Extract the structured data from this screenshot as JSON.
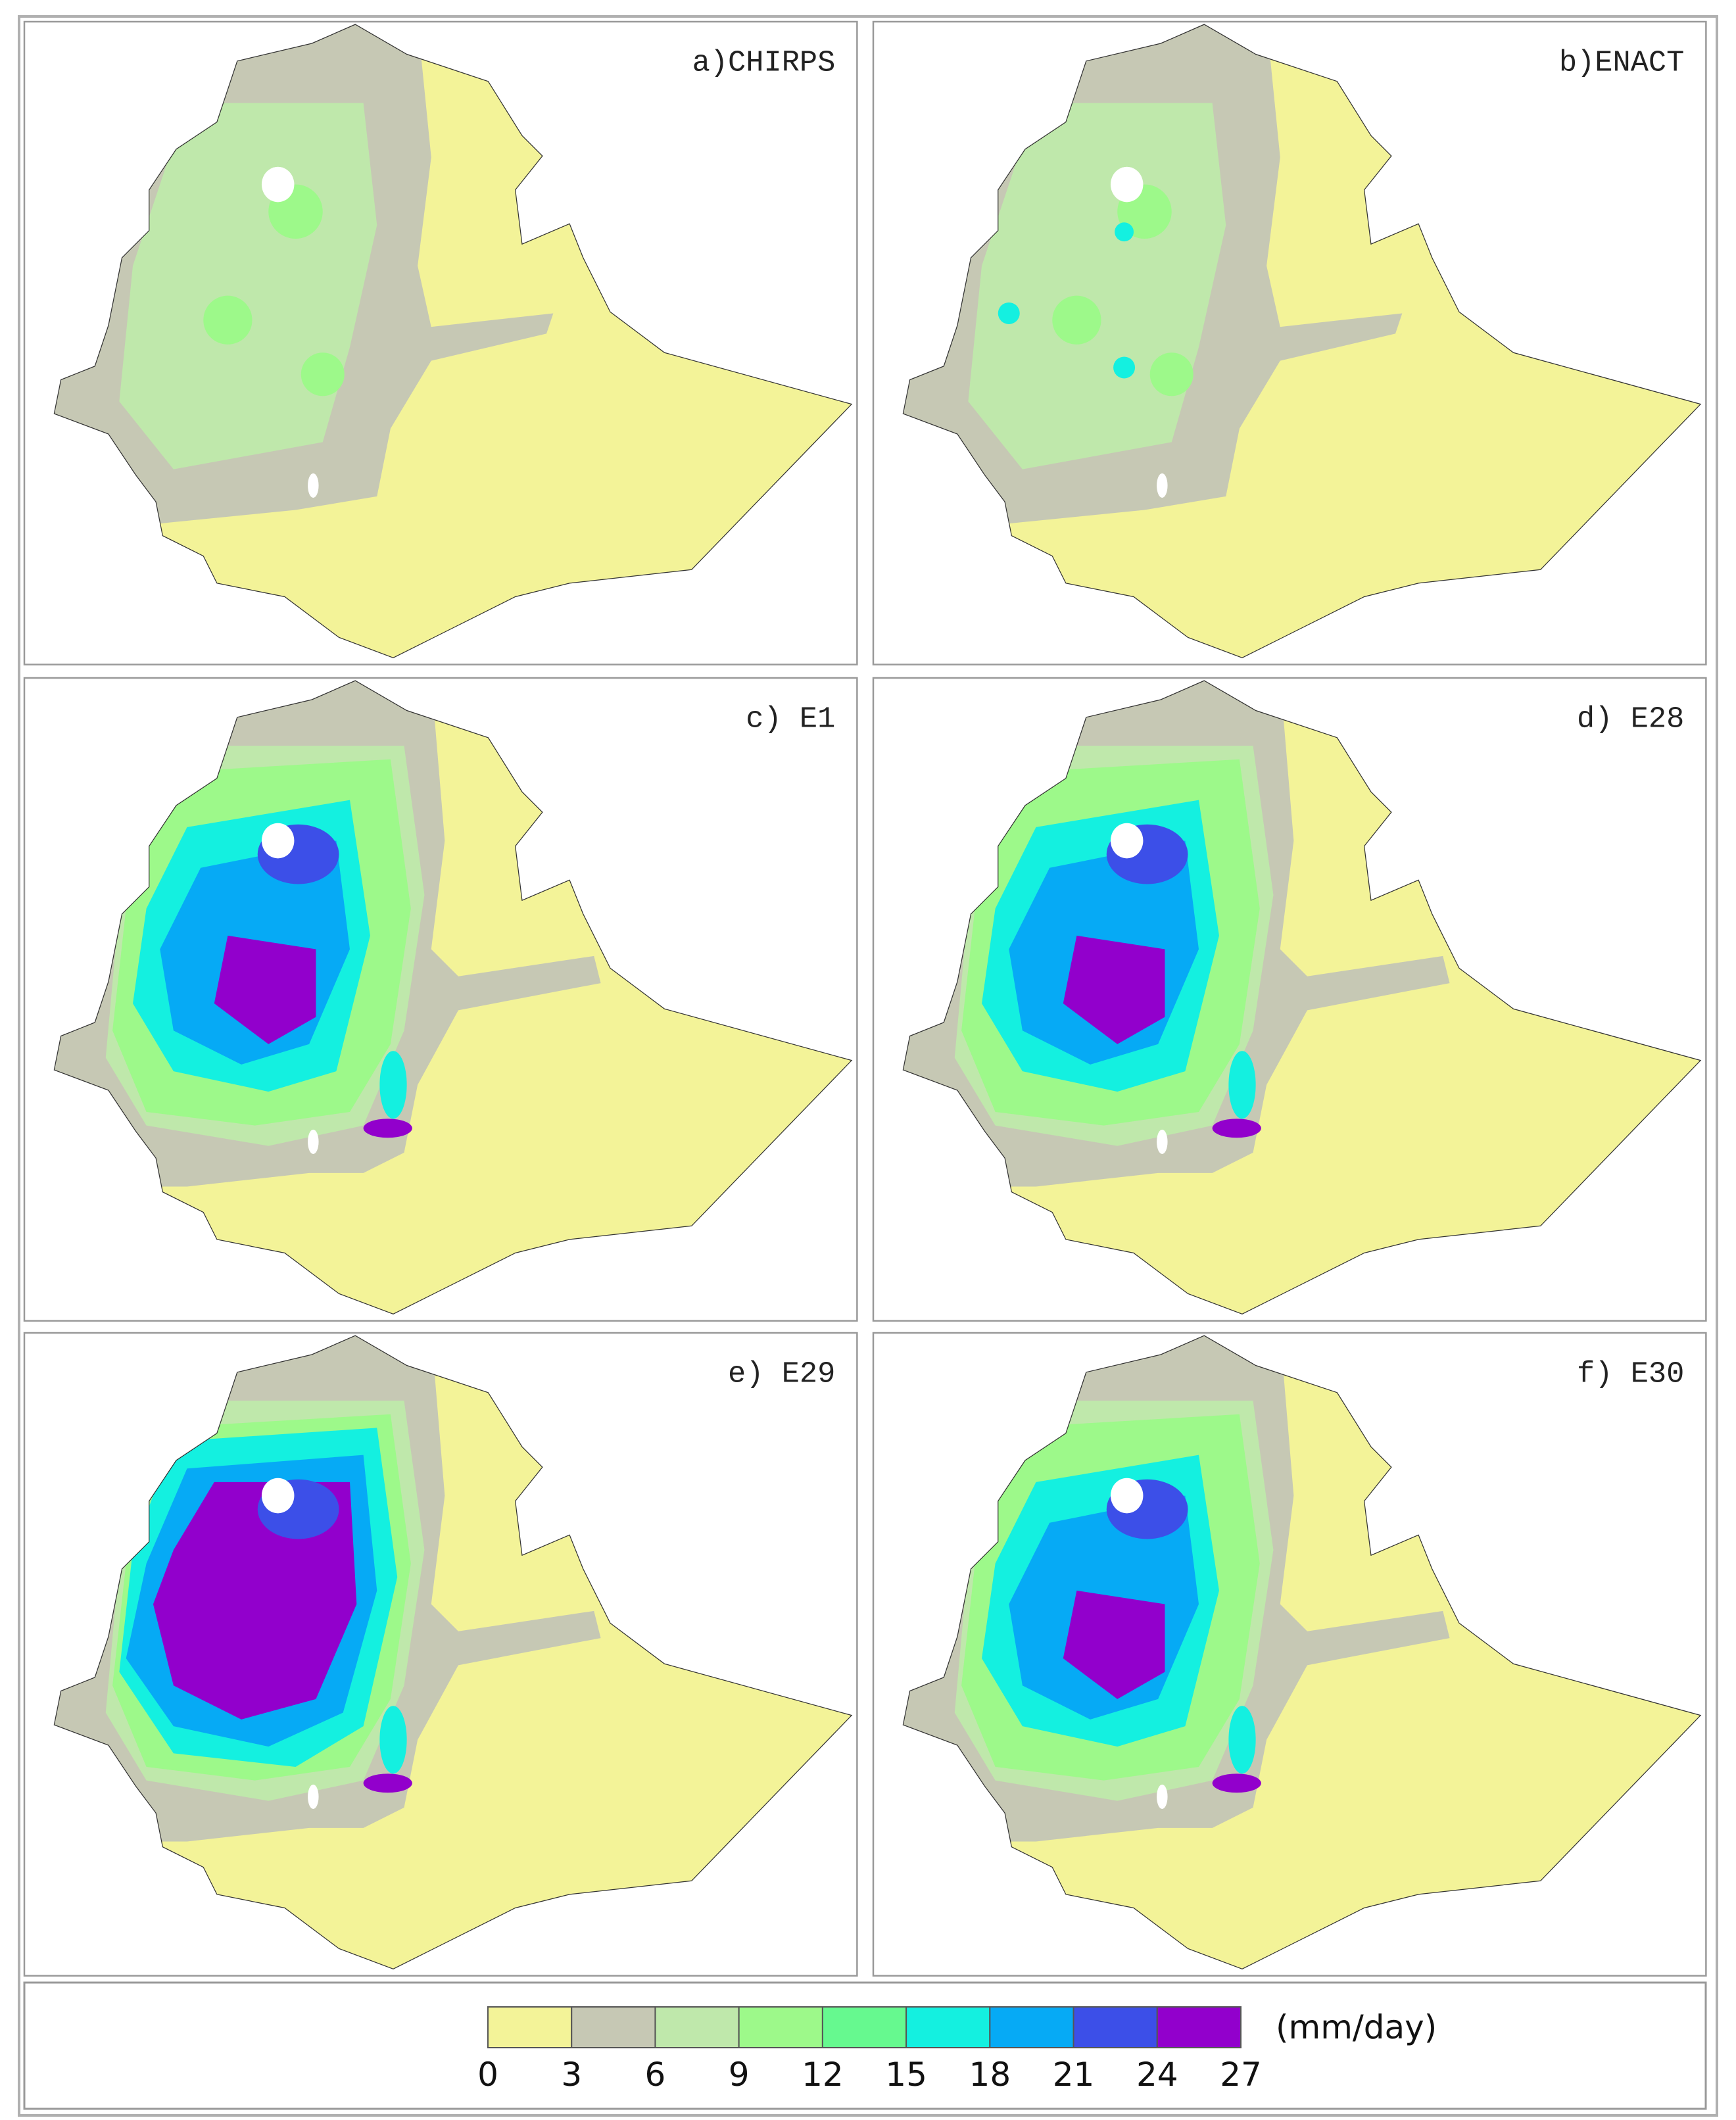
{
  "panels": [
    {
      "label": "a)CHIRPS"
    },
    {
      "label": "b)ENACT"
    },
    {
      "label": "c) E1"
    },
    {
      "label": "d) E28"
    },
    {
      "label": "e) E29"
    },
    {
      "label": "f) E30"
    }
  ],
  "colorbar": {
    "colors": [
      "#f3f398",
      "#c6c8b4",
      "#bfe8ab",
      "#9df98a",
      "#66f98f",
      "#14f0e0",
      "#06aaf5",
      "#3c4fe8",
      "#9200cc"
    ],
    "ticks": [
      0,
      3,
      6,
      9,
      12,
      15,
      18,
      21,
      24,
      27
    ],
    "unit": "(mm/day)"
  }
}
